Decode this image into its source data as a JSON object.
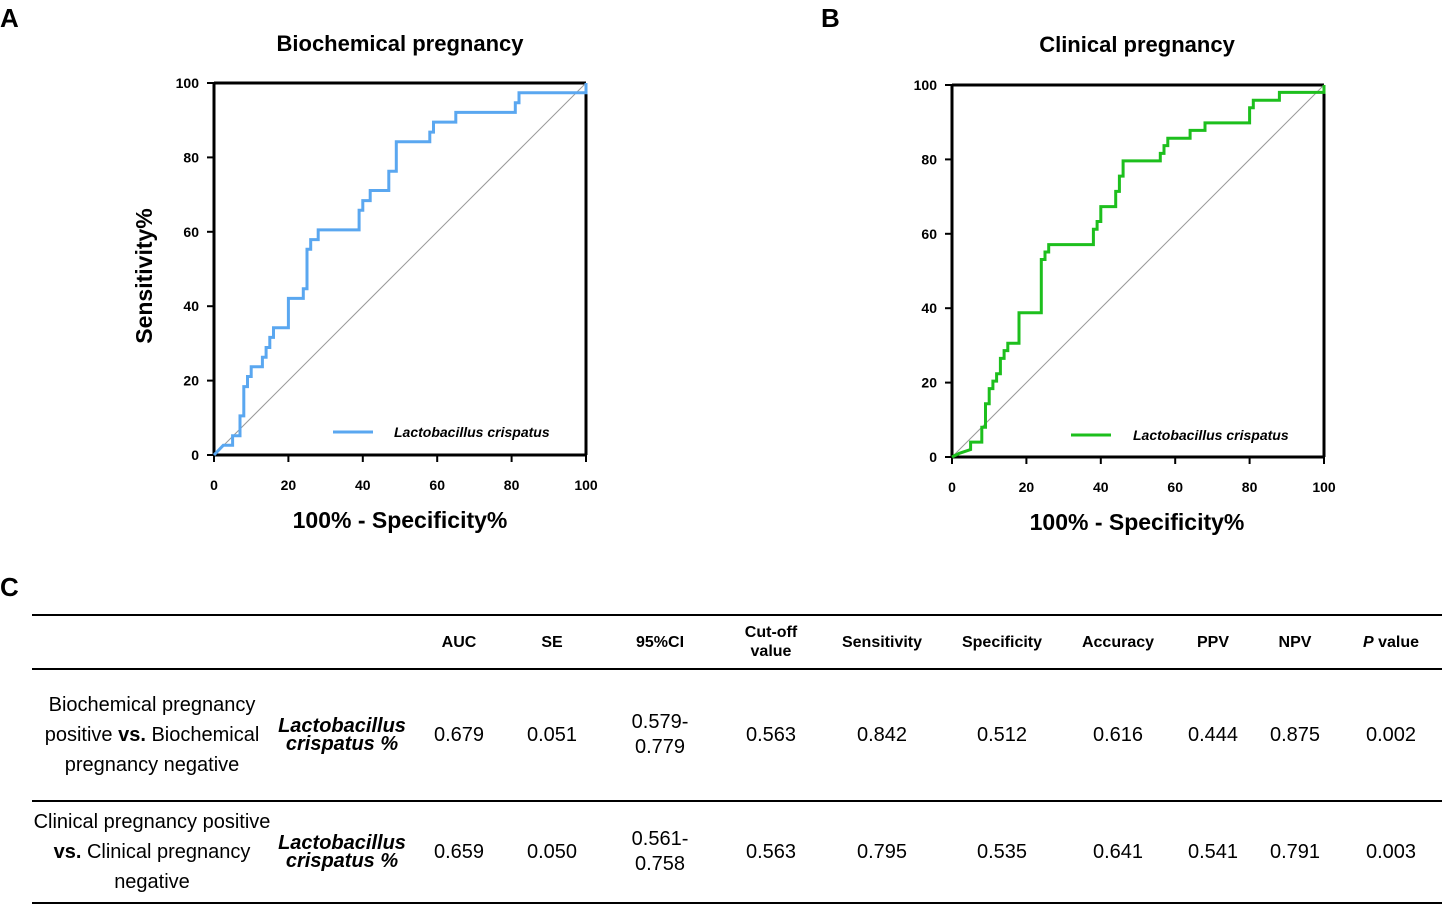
{
  "panels": {
    "A": {
      "letter": "A",
      "title": "Biochemical pregnancy",
      "ylabel": "Sensitivity%",
      "xlabel": "100% - Specificity%",
      "legend": "Lactobacillus crispatus",
      "color": "#5aa7f0"
    },
    "B": {
      "letter": "B",
      "title": "Clinical pregnancy",
      "ylabel": "Sensitivity%",
      "xlabel": "100% - Specificity%",
      "legend": "Lactobacillus crispatus",
      "color": "#1dbf1d"
    }
  },
  "chart_data": [
    {
      "type": "line",
      "panel": "A",
      "title": "Biochemical pregnancy",
      "xlabel": "100% - Specificity%",
      "ylabel": "Sensitivity%",
      "xlim": [
        0,
        100
      ],
      "ylim": [
        0,
        100
      ],
      "xticks": [
        "0",
        "20",
        "40",
        "60",
        "80",
        "100"
      ],
      "yticks": [
        "0",
        "20",
        "40",
        "60",
        "80",
        "100"
      ],
      "legend_position": "bottom-right",
      "series": [
        {
          "name": "Lactobacillus crispatus",
          "color": "#5aa7f0",
          "x": [
            0,
            2.5,
            5,
            5,
            7,
            7,
            8,
            8,
            9,
            9,
            10,
            10,
            13,
            13,
            14,
            14,
            15,
            15,
            16,
            16,
            17,
            17,
            20,
            20,
            24,
            24,
            25,
            25,
            26,
            26,
            28,
            28,
            29,
            29,
            39,
            39,
            40,
            40,
            42,
            42,
            47,
            47,
            49,
            49,
            58,
            58,
            59,
            59,
            65,
            65,
            81,
            81,
            82,
            82,
            100,
            100
          ],
          "y": [
            0,
            2.6,
            2.6,
            5.2,
            5.2,
            10.5,
            10.5,
            18.4,
            18.4,
            21.1,
            21.1,
            23.7,
            23.7,
            26.3,
            26.3,
            28.9,
            28.9,
            31.6,
            31.6,
            34.2,
            34.2,
            34.2,
            34.2,
            42.1,
            42.1,
            44.7,
            44.7,
            55.3,
            55.3,
            57.9,
            57.9,
            60.5,
            60.5,
            60.5,
            60.5,
            65.8,
            65.8,
            68.4,
            68.4,
            71.1,
            71.1,
            76.3,
            76.3,
            84.2,
            84.2,
            86.8,
            86.8,
            89.5,
            89.5,
            92.1,
            92.1,
            94.7,
            94.7,
            97.4,
            97.4,
            100
          ]
        },
        {
          "name": "Reference",
          "color": "#999999",
          "x": [
            0,
            100
          ],
          "y": [
            0,
            100
          ]
        }
      ]
    },
    {
      "type": "line",
      "panel": "B",
      "title": "Clinical pregnancy",
      "xlabel": "100% - Specificity%",
      "ylabel": "Sensitivity%",
      "xlim": [
        0,
        100
      ],
      "ylim": [
        0,
        100
      ],
      "xticks": [
        "0",
        "20",
        "40",
        "60",
        "80",
        "100"
      ],
      "yticks": [
        "0",
        "20",
        "40",
        "60",
        "80",
        "100"
      ],
      "legend_position": "bottom-right",
      "series": [
        {
          "name": "Lactobacillus crispatus",
          "color": "#1dbf1d",
          "x": [
            0,
            2,
            5,
            5,
            8,
            8,
            9,
            9,
            10,
            10,
            11,
            11,
            12,
            12,
            13,
            13,
            14,
            14,
            15,
            15,
            16,
            16,
            18,
            18,
            20,
            20,
            24,
            24,
            25,
            25,
            26,
            26,
            38,
            38,
            39,
            39,
            40,
            40,
            44,
            44,
            45,
            45,
            46,
            46,
            56,
            56,
            57,
            57,
            58,
            58,
            64,
            64,
            68,
            68,
            80,
            80,
            81,
            81,
            88,
            88,
            100,
            100
          ],
          "y": [
            0,
            1,
            2,
            4,
            4,
            8,
            8,
            14.3,
            14.3,
            18.4,
            18.4,
            20.4,
            20.4,
            22.4,
            22.4,
            26.5,
            26.5,
            28.6,
            28.6,
            30.6,
            30.6,
            30.6,
            30.6,
            38.8,
            38.8,
            38.8,
            38.8,
            53.1,
            53.1,
            55.1,
            55.1,
            57.1,
            57.1,
            61.2,
            61.2,
            63.3,
            63.3,
            67.3,
            67.3,
            71.4,
            71.4,
            75.5,
            75.5,
            79.6,
            79.6,
            81.6,
            81.6,
            83.7,
            83.7,
            85.7,
            85.7,
            87.8,
            87.8,
            89.8,
            89.8,
            93.9,
            93.9,
            95.9,
            95.9,
            98,
            98,
            100
          ]
        },
        {
          "name": "Reference",
          "color": "#999999",
          "x": [
            0,
            100
          ],
          "y": [
            0,
            100
          ]
        }
      ]
    }
  ],
  "table": {
    "panel_letter": "C",
    "headers": [
      "",
      "",
      "AUC",
      "SE",
      "95%CI",
      "Cut-off value",
      "Sensitivity",
      "Specificity",
      "Accuracy",
      "PPV",
      "NPV",
      "value"
    ],
    "p_header_prefix": "P",
    "rows": [
      {
        "label_start": "Biochemical pregnancy positive",
        "label_vs": "vs.",
        "label_end": "Biochemical pregnancy negative",
        "marker": "Lactobacillus crispatus %",
        "auc": "0.679",
        "se": "0.051",
        "ci": "0.579-\n0.779",
        "cutoff": "0.563",
        "sensitivity": "0.842",
        "specificity": "0.512",
        "accuracy": "0.616",
        "ppv": "0.444",
        "npv": "0.875",
        "p": "0.002"
      },
      {
        "label_start": "Clinical pregnancy positive",
        "label_vs": "vs.",
        "label_end": "Clinical pregnancy negative",
        "marker": "Lactobacillus crispatus %",
        "auc": "0.659",
        "se": "0.050",
        "ci": "0.561-\n0.758",
        "cutoff": "0.563",
        "sensitivity": "0.795",
        "specificity": "0.535",
        "accuracy": "0.641",
        "ppv": "0.541",
        "npv": "0.791",
        "p": "0.003"
      }
    ]
  }
}
